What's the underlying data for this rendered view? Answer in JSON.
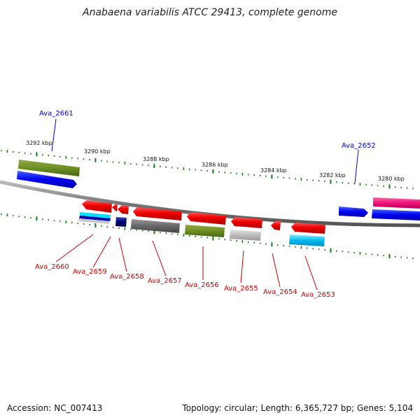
{
  "title": "Anabaena variabilis ATCC 29413, complete genome",
  "accession": "Accession: NC_007413",
  "summary": "Topology: circular; Length: 6,365,727 bp; Genes: 5,104",
  "ruler_labels": [
    "3292 kbp",
    "3290 kbp",
    "3288 kbp",
    "3286 kbp",
    "3284 kbp",
    "3282 kbp",
    "3280 kbp"
  ],
  "colors": {
    "forward_label": "#0000cc",
    "reverse_label": "#cc0000",
    "tick_green": "#1a7a1a",
    "backbone": "#8a8a8a"
  },
  "forward_genes": [
    {
      "label": "Ava_2661"
    },
    {
      "label": "Ava_2652"
    }
  ],
  "reverse_genes": [
    {
      "label": "Ava_2660"
    },
    {
      "label": "Ava_2659"
    },
    {
      "label": "Ava_2658"
    },
    {
      "label": "Ava_2657"
    },
    {
      "label": "Ava_2656"
    },
    {
      "label": "Ava_2655"
    },
    {
      "label": "Ava_2654"
    },
    {
      "label": "Ava_2653"
    }
  ]
}
